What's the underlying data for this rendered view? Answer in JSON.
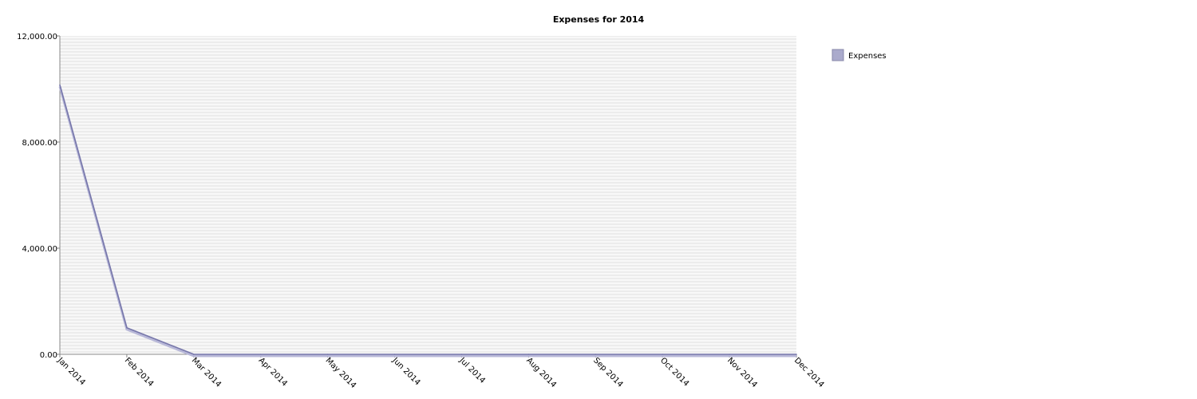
{
  "chart_data": {
    "type": "line",
    "title": "Expenses for 2014",
    "xlabel": "",
    "ylabel": "",
    "categories": [
      "Jan 2014",
      "Feb 2014",
      "Mar 2014",
      "Apr 2014",
      "May 2014",
      "Jun 2014",
      "Jul 2014",
      "Aug 2014",
      "Sep 2014",
      "Oct 2014",
      "Nov 2014",
      "Dec 2014"
    ],
    "series": [
      {
        "name": "Expenses",
        "values": [
          10150,
          1000,
          0,
          0,
          0,
          0,
          0,
          0,
          0,
          0,
          0,
          0
        ]
      }
    ],
    "ylim": [
      0,
      12000
    ],
    "yticks": [
      0,
      4000,
      8000,
      12000
    ],
    "ytick_labels": [
      "0.00",
      "4,000.00",
      "8,000.00",
      "12,000.00"
    ],
    "grid": true,
    "legend_position": "top-right",
    "colors": {
      "series": "#7777aa",
      "legend_swatch": "#aaaacc",
      "plot_background": "#ececec",
      "gridline": "#ffffff"
    }
  }
}
